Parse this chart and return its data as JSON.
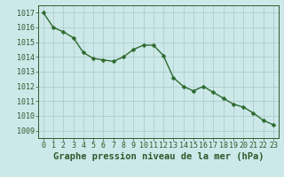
{
  "x": [
    0,
    1,
    2,
    3,
    4,
    5,
    6,
    7,
    8,
    9,
    10,
    11,
    12,
    13,
    14,
    15,
    16,
    17,
    18,
    19,
    20,
    21,
    22,
    23
  ],
  "y": [
    1017.0,
    1016.0,
    1015.7,
    1015.3,
    1014.3,
    1013.9,
    1013.8,
    1013.7,
    1014.0,
    1014.5,
    1014.8,
    1014.8,
    1014.1,
    1012.6,
    1012.0,
    1011.7,
    1012.0,
    1011.6,
    1011.2,
    1010.8,
    1010.6,
    1010.2,
    1009.7,
    1009.4
  ],
  "line_color": "#2d6a2d",
  "marker_color": "#2d6a2d",
  "bg_color": "#cce8e8",
  "grid_color": "#aac8c8",
  "title": "Graphe pression niveau de la mer (hPa)",
  "xlim": [
    -0.5,
    23.5
  ],
  "ylim": [
    1008.5,
    1017.5
  ],
  "yticks": [
    1009,
    1010,
    1011,
    1012,
    1013,
    1014,
    1015,
    1016,
    1017
  ],
  "xticks": [
    0,
    1,
    2,
    3,
    4,
    5,
    6,
    7,
    8,
    9,
    10,
    11,
    12,
    13,
    14,
    15,
    16,
    17,
    18,
    19,
    20,
    21,
    22,
    23
  ],
  "tick_label_color": "#2d5a2d",
  "title_color": "#2d5a2d",
  "title_fontsize": 7.5,
  "tick_fontsize": 6.0,
  "line_width": 1.0,
  "marker_size": 2.5
}
